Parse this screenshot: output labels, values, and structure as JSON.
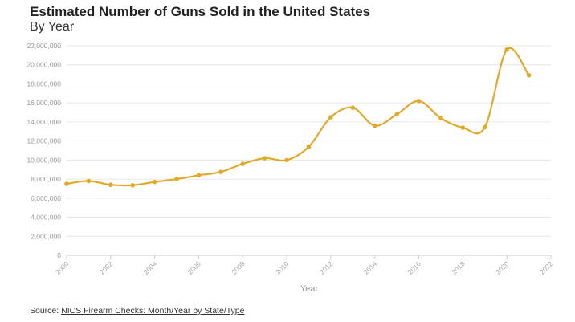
{
  "chart_data": {
    "type": "line",
    "title": "Estimated Number of Guns Sold in the United States",
    "subtitle": "By Year",
    "xlabel": "Year",
    "ylabel": "",
    "x": [
      2000,
      2001,
      2002,
      2003,
      2004,
      2005,
      2006,
      2007,
      2008,
      2009,
      2010,
      2011,
      2012,
      2013,
      2014,
      2015,
      2016,
      2017,
      2018,
      2019,
      2020,
      2021
    ],
    "series": [
      {
        "values": [
          7500000,
          7800000,
          7400000,
          7350000,
          7700000,
          8000000,
          8400000,
          8750000,
          9600000,
          10200000,
          10000000,
          11400000,
          14500000,
          15500000,
          13600000,
          14800000,
          16200000,
          14400000,
          13400000,
          13450000,
          21600000,
          18900000
        ]
      }
    ],
    "xlim": [
      2000,
      2022
    ],
    "ylim": [
      0,
      22000000
    ],
    "x_ticks": [
      "2000",
      "2002",
      "2004",
      "2006",
      "2008",
      "2010",
      "2012",
      "2014",
      "2016",
      "2018",
      "2020",
      "2022"
    ],
    "y_ticks": [
      "0",
      "2,000,000",
      "4,000,000",
      "6,000,000",
      "8,000,000",
      "10,000,000",
      "12,000,000",
      "14,000,000",
      "16,000,000",
      "18,000,000",
      "20,000,000",
      "22,000,000"
    ],
    "grid": true,
    "line_color": "#e0a92a"
  },
  "source": {
    "prefix": "Source: ",
    "link_text": "NICS Firearm Checks: Month/Year by State/Type"
  }
}
